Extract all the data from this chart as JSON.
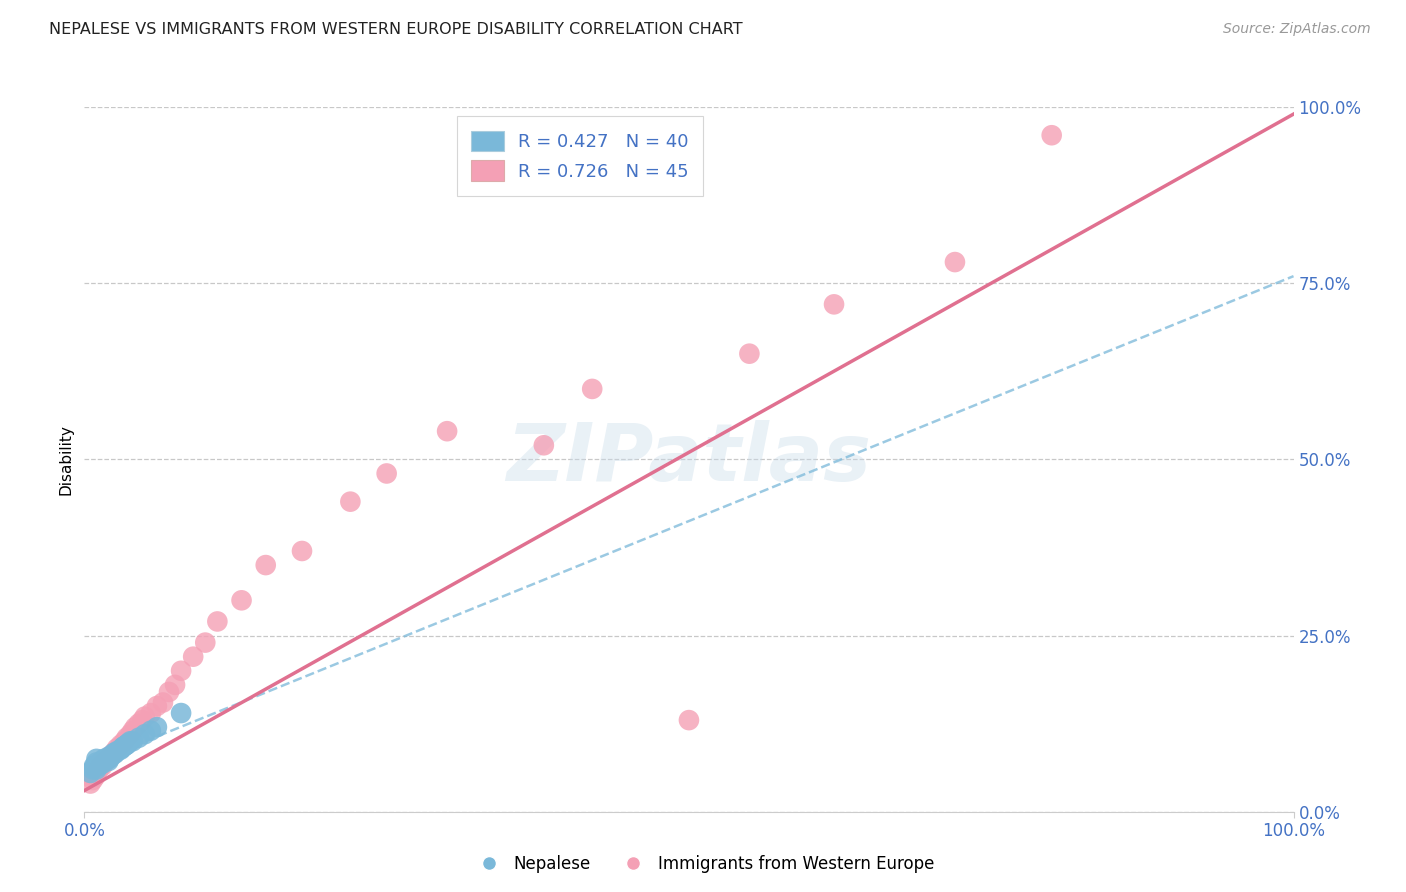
{
  "title": "NEPALESE VS IMMIGRANTS FROM WESTERN EUROPE DISABILITY CORRELATION CHART",
  "source": "Source: ZipAtlas.com",
  "ylabel": "Disability",
  "xlim": [
    0,
    1.0
  ],
  "ylim": [
    0,
    1.0
  ],
  "ytick_labels": [
    "0.0%",
    "25.0%",
    "50.0%",
    "75.0%",
    "100.0%"
  ],
  "ytick_positions": [
    0.0,
    0.25,
    0.5,
    0.75,
    1.0
  ],
  "watermark": "ZIPatlas",
  "series1_label": "Nepalese",
  "series1_R": "0.427",
  "series1_N": "40",
  "series1_color": "#7ab8d9",
  "series1_edge_color": "#5a9ec4",
  "series1_line_color": "#7ab8d9",
  "series2_label": "Immigrants from Western Europe",
  "series2_R": "0.726",
  "series2_N": "45",
  "series2_color": "#f4a0b5",
  "series2_edge_color": "#e07090",
  "series2_line_color": "#e07090",
  "background_color": "#ffffff",
  "grid_color": "#c8c8c8",
  "legend_color_blue": "#7ab8d9",
  "legend_color_pink": "#f4a0b5",
  "tick_color": "#4472c4",
  "series1_x": [
    0.005,
    0.007,
    0.008,
    0.009,
    0.01,
    0.01,
    0.01,
    0.01,
    0.012,
    0.013,
    0.014,
    0.015,
    0.015,
    0.016,
    0.017,
    0.018,
    0.019,
    0.02,
    0.02,
    0.021,
    0.022,
    0.023,
    0.024,
    0.025,
    0.026,
    0.027,
    0.03,
    0.031,
    0.032,
    0.033,
    0.034,
    0.035,
    0.036,
    0.038,
    0.04,
    0.045,
    0.05,
    0.055,
    0.06,
    0.08
  ],
  "series1_y": [
    0.055,
    0.06,
    0.065,
    0.065,
    0.06,
    0.065,
    0.07,
    0.075,
    0.065,
    0.07,
    0.07,
    0.068,
    0.072,
    0.075,
    0.073,
    0.075,
    0.074,
    0.072,
    0.078,
    0.076,
    0.079,
    0.08,
    0.083,
    0.082,
    0.084,
    0.086,
    0.088,
    0.09,
    0.092,
    0.093,
    0.094,
    0.095,
    0.097,
    0.1,
    0.1,
    0.105,
    0.11,
    0.115,
    0.12,
    0.14
  ],
  "series2_x": [
    0.005,
    0.007,
    0.008,
    0.009,
    0.01,
    0.012,
    0.013,
    0.015,
    0.016,
    0.018,
    0.02,
    0.022,
    0.025,
    0.027,
    0.03,
    0.033,
    0.035,
    0.038,
    0.04,
    0.042,
    0.045,
    0.048,
    0.05,
    0.055,
    0.06,
    0.065,
    0.07,
    0.075,
    0.08,
    0.09,
    0.1,
    0.11,
    0.13,
    0.15,
    0.18,
    0.22,
    0.25,
    0.3,
    0.38,
    0.42,
    0.5,
    0.55,
    0.62,
    0.72,
    0.8
  ],
  "series2_y": [
    0.04,
    0.045,
    0.05,
    0.05,
    0.055,
    0.06,
    0.065,
    0.065,
    0.07,
    0.072,
    0.075,
    0.08,
    0.085,
    0.09,
    0.095,
    0.1,
    0.105,
    0.11,
    0.115,
    0.12,
    0.125,
    0.13,
    0.135,
    0.14,
    0.15,
    0.155,
    0.17,
    0.18,
    0.2,
    0.22,
    0.24,
    0.27,
    0.3,
    0.35,
    0.37,
    0.44,
    0.48,
    0.54,
    0.52,
    0.6,
    0.13,
    0.65,
    0.72,
    0.78,
    0.96
  ],
  "line1_x0": 0.0,
  "line1_y0": 0.065,
  "line1_x1": 1.0,
  "line1_y1": 0.76,
  "line2_x0": 0.0,
  "line2_y0": 0.03,
  "line2_x1": 1.0,
  "line2_y1": 0.99
}
